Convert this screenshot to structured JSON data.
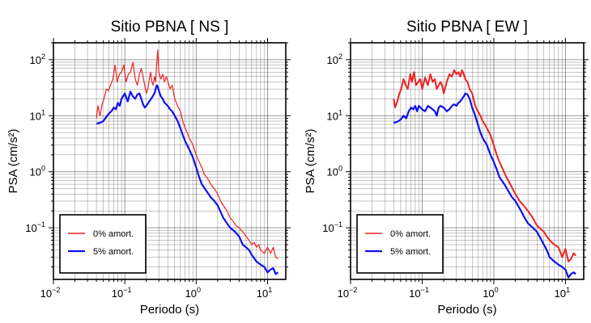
{
  "chart_data": [
    {
      "type": "line",
      "title": "Sitio PBNA [ NS ]",
      "xlabel": "Periodo (s)",
      "ylabel": "PSA (cm/s²)",
      "xscale": "log",
      "yscale": "log",
      "xlim": [
        0.01,
        18
      ],
      "ylim": [
        0.012,
        200
      ],
      "grid": true,
      "legend_placement": "bottom-left",
      "xticks": [
        {
          "base": "10",
          "exp": "−2"
        },
        {
          "base": "10",
          "exp": "−1"
        },
        {
          "base": "10",
          "exp": "0"
        },
        {
          "base": "10",
          "exp": "1"
        }
      ],
      "yticks": [
        {
          "base": "10",
          "exp": "−1"
        },
        {
          "base": "10",
          "exp": "0"
        },
        {
          "base": "10",
          "exp": "1"
        },
        {
          "base": "10",
          "exp": "2"
        }
      ],
      "series": [
        {
          "name": "0% amort.",
          "color": "#ee2222",
          "width": 1.2,
          "x": [
            0.04,
            0.042,
            0.045,
            0.048,
            0.051,
            0.055,
            0.059,
            0.063,
            0.068,
            0.073,
            0.078,
            0.084,
            0.09,
            0.097,
            0.104,
            0.112,
            0.12,
            0.13,
            0.14,
            0.15,
            0.16,
            0.17,
            0.18,
            0.19,
            0.2,
            0.21,
            0.22,
            0.23,
            0.24,
            0.25,
            0.26,
            0.27,
            0.28,
            0.29,
            0.3,
            0.32,
            0.34,
            0.36,
            0.38,
            0.4,
            0.43,
            0.46,
            0.5,
            0.55,
            0.6,
            0.65,
            0.7,
            0.75,
            0.8,
            0.9,
            1.0,
            1.1,
            1.2,
            1.3,
            1.4,
            1.5,
            1.6,
            1.8,
            2.0,
            2.2,
            2.4,
            2.7,
            3.0,
            3.3,
            3.6,
            4.0,
            4.5,
            5.0,
            5.5,
            6.0,
            6.5,
            7.0,
            7.5,
            8.0,
            9.0,
            10.0,
            11.0,
            12.0,
            13.0,
            14.0
          ],
          "y": [
            9,
            15,
            10,
            16,
            20,
            30,
            28,
            35,
            45,
            80,
            40,
            55,
            60,
            80,
            40,
            55,
            60,
            90,
            45,
            35,
            55,
            70,
            50,
            35,
            25,
            30,
            45,
            60,
            40,
            35,
            50,
            40,
            85,
            150,
            60,
            45,
            55,
            40,
            50,
            42,
            30,
            35,
            20,
            15,
            12,
            8,
            6,
            5,
            4,
            3,
            2,
            1.5,
            1.2,
            0.9,
            0.8,
            0.7,
            0.6,
            0.5,
            0.4,
            0.3,
            0.25,
            0.2,
            0.15,
            0.13,
            0.11,
            0.1,
            0.085,
            0.07,
            0.06,
            0.05,
            0.055,
            0.045,
            0.05,
            0.04,
            0.035,
            0.045,
            0.035,
            0.045,
            0.03,
            0.028
          ]
        },
        {
          "name": "5% amort.",
          "color": "#1111ee",
          "width": 2.2,
          "x": [
            0.04,
            0.045,
            0.05,
            0.055,
            0.06,
            0.065,
            0.07,
            0.075,
            0.08,
            0.085,
            0.09,
            0.1,
            0.11,
            0.12,
            0.13,
            0.14,
            0.15,
            0.16,
            0.17,
            0.18,
            0.19,
            0.2,
            0.22,
            0.24,
            0.26,
            0.28,
            0.29,
            0.3,
            0.32,
            0.34,
            0.36,
            0.38,
            0.4,
            0.43,
            0.46,
            0.5,
            0.55,
            0.6,
            0.65,
            0.7,
            0.8,
            0.9,
            1.0,
            1.1,
            1.2,
            1.4,
            1.6,
            1.8,
            2.0,
            2.4,
            2.7,
            3.0,
            3.5,
            4.0,
            4.5,
            5.0,
            5.5,
            6.0,
            7.0,
            8.0,
            9.0,
            10.0,
            11.0,
            12.0,
            13.0,
            14.0
          ],
          "y": [
            7.2,
            7.5,
            8,
            9.5,
            11,
            12,
            14,
            13,
            17,
            15,
            20,
            25,
            18,
            27,
            22,
            20,
            24,
            25,
            20,
            16,
            14,
            15,
            18,
            21,
            25,
            35,
            33,
            28,
            22,
            20,
            17,
            16,
            15,
            13,
            12,
            10,
            8,
            6,
            4.5,
            3.5,
            2.5,
            1.8,
            1.2,
            0.8,
            0.6,
            0.45,
            0.35,
            0.3,
            0.25,
            0.15,
            0.12,
            0.1,
            0.085,
            0.07,
            0.05,
            0.045,
            0.04,
            0.033,
            0.025,
            0.022,
            0.02,
            0.016,
            0.018,
            0.019,
            0.015,
            0.016
          ]
        }
      ]
    },
    {
      "type": "line",
      "title": "Sitio PBNA [ EW ]",
      "xlabel": "Periodo (s)",
      "ylabel": "PSA (cm/s²)",
      "xscale": "log",
      "yscale": "log",
      "xlim": [
        0.01,
        18
      ],
      "ylim": [
        0.012,
        200
      ],
      "grid": true,
      "legend_placement": "bottom-left",
      "xticks": [
        {
          "base": "10",
          "exp": "−2"
        },
        {
          "base": "10",
          "exp": "−1"
        },
        {
          "base": "10",
          "exp": "0"
        },
        {
          "base": "10",
          "exp": "1"
        }
      ],
      "yticks": [
        {
          "base": "10",
          "exp": "−1"
        },
        {
          "base": "10",
          "exp": "0"
        },
        {
          "base": "10",
          "exp": "1"
        },
        {
          "base": "10",
          "exp": "2"
        }
      ],
      "series": [
        {
          "name": "0% amort.",
          "color": "#ee2222",
          "width": 2.0,
          "x": [
            0.04,
            0.042,
            0.045,
            0.048,
            0.051,
            0.055,
            0.059,
            0.063,
            0.068,
            0.072,
            0.077,
            0.082,
            0.088,
            0.094,
            0.1,
            0.11,
            0.12,
            0.13,
            0.14,
            0.15,
            0.16,
            0.17,
            0.18,
            0.19,
            0.2,
            0.22,
            0.24,
            0.26,
            0.28,
            0.3,
            0.32,
            0.34,
            0.36,
            0.38,
            0.4,
            0.43,
            0.46,
            0.5,
            0.55,
            0.6,
            0.65,
            0.7,
            0.75,
            0.8,
            0.9,
            1.0,
            1.1,
            1.2,
            1.3,
            1.5,
            1.7,
            2.0,
            2.3,
            2.6,
            3.0,
            3.5,
            4.0,
            4.5,
            5.0,
            5.5,
            6.0,
            7.0,
            8.0,
            9.0,
            10.0,
            11.0,
            12.0,
            13.0,
            14.0
          ],
          "y": [
            20,
            14,
            18,
            25,
            30,
            45,
            35,
            30,
            55,
            40,
            60,
            35,
            40,
            45,
            30,
            48,
            35,
            55,
            40,
            45,
            30,
            35,
            40,
            35,
            25,
            40,
            55,
            50,
            65,
            55,
            60,
            50,
            65,
            55,
            45,
            40,
            30,
            25,
            15,
            12,
            10,
            8,
            7,
            6,
            4.5,
            3,
            2,
            1.5,
            1.2,
            0.8,
            0.6,
            0.4,
            0.3,
            0.25,
            0.2,
            0.15,
            0.11,
            0.095,
            0.085,
            0.07,
            0.06,
            0.05,
            0.045,
            0.03,
            0.042,
            0.025,
            0.028,
            0.035,
            0.032
          ]
        },
        {
          "name": "5% amort.",
          "color": "#1111ee",
          "width": 2.2,
          "x": [
            0.04,
            0.045,
            0.05,
            0.055,
            0.06,
            0.065,
            0.07,
            0.075,
            0.08,
            0.085,
            0.09,
            0.1,
            0.11,
            0.12,
            0.13,
            0.14,
            0.15,
            0.16,
            0.17,
            0.18,
            0.2,
            0.22,
            0.24,
            0.26,
            0.28,
            0.3,
            0.32,
            0.34,
            0.36,
            0.38,
            0.4,
            0.43,
            0.46,
            0.5,
            0.55,
            0.6,
            0.65,
            0.7,
            0.8,
            0.9,
            1.0,
            1.1,
            1.2,
            1.4,
            1.6,
            1.8,
            2.0,
            2.4,
            2.7,
            3.0,
            3.5,
            4.0,
            4.5,
            5.0,
            5.5,
            6.0,
            7.0,
            8.0,
            9.0,
            10.0,
            11.0,
            12.0,
            13.0,
            14.0
          ],
          "y": [
            7.5,
            7.8,
            8.5,
            10,
            9,
            12,
            14,
            13,
            15,
            12,
            15,
            13,
            12,
            15,
            14,
            13,
            12,
            10,
            14,
            15,
            14,
            12,
            13,
            15,
            16,
            15,
            17,
            18,
            20,
            22,
            25,
            24,
            20,
            14,
            10,
            7,
            5,
            4,
            3,
            2,
            1.5,
            1.1,
            0.8,
            0.6,
            0.45,
            0.35,
            0.3,
            0.2,
            0.15,
            0.12,
            0.1,
            0.085,
            0.065,
            0.05,
            0.04,
            0.03,
            0.025,
            0.022,
            0.02,
            0.018,
            0.013,
            0.015,
            0.016,
            0.015
          ]
        }
      ]
    }
  ]
}
